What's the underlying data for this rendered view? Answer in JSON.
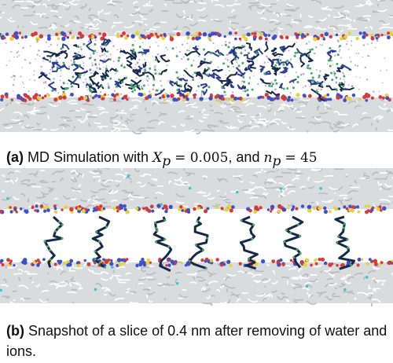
{
  "figure": {
    "panel_a": {
      "caption_label": "(a)",
      "caption_text": "MD Simulation with",
      "math_var1": "X",
      "math_sub1": "p",
      "math_eq1": "= 0.005",
      "caption_mid": ", and",
      "math_var2": "n",
      "math_sub2": "p",
      "math_eq2": "= 45"
    },
    "panel_b": {
      "caption_label": "(b)",
      "caption_text": "Snapshot of a slice of 0.4 nm after removing of water and ions."
    },
    "colors": {
      "lipid_tail": "#d9dcdd",
      "headgroup_red": "#d63a3a",
      "headgroup_blue": "#3d4fc9",
      "headgroup_yellow": "#e6d23a",
      "polymer_dark": "#152a4a",
      "polymer_green": "#49a86a",
      "water_violet": "#8e5fb8",
      "ion_cyan": "#3ec7c7"
    }
  }
}
